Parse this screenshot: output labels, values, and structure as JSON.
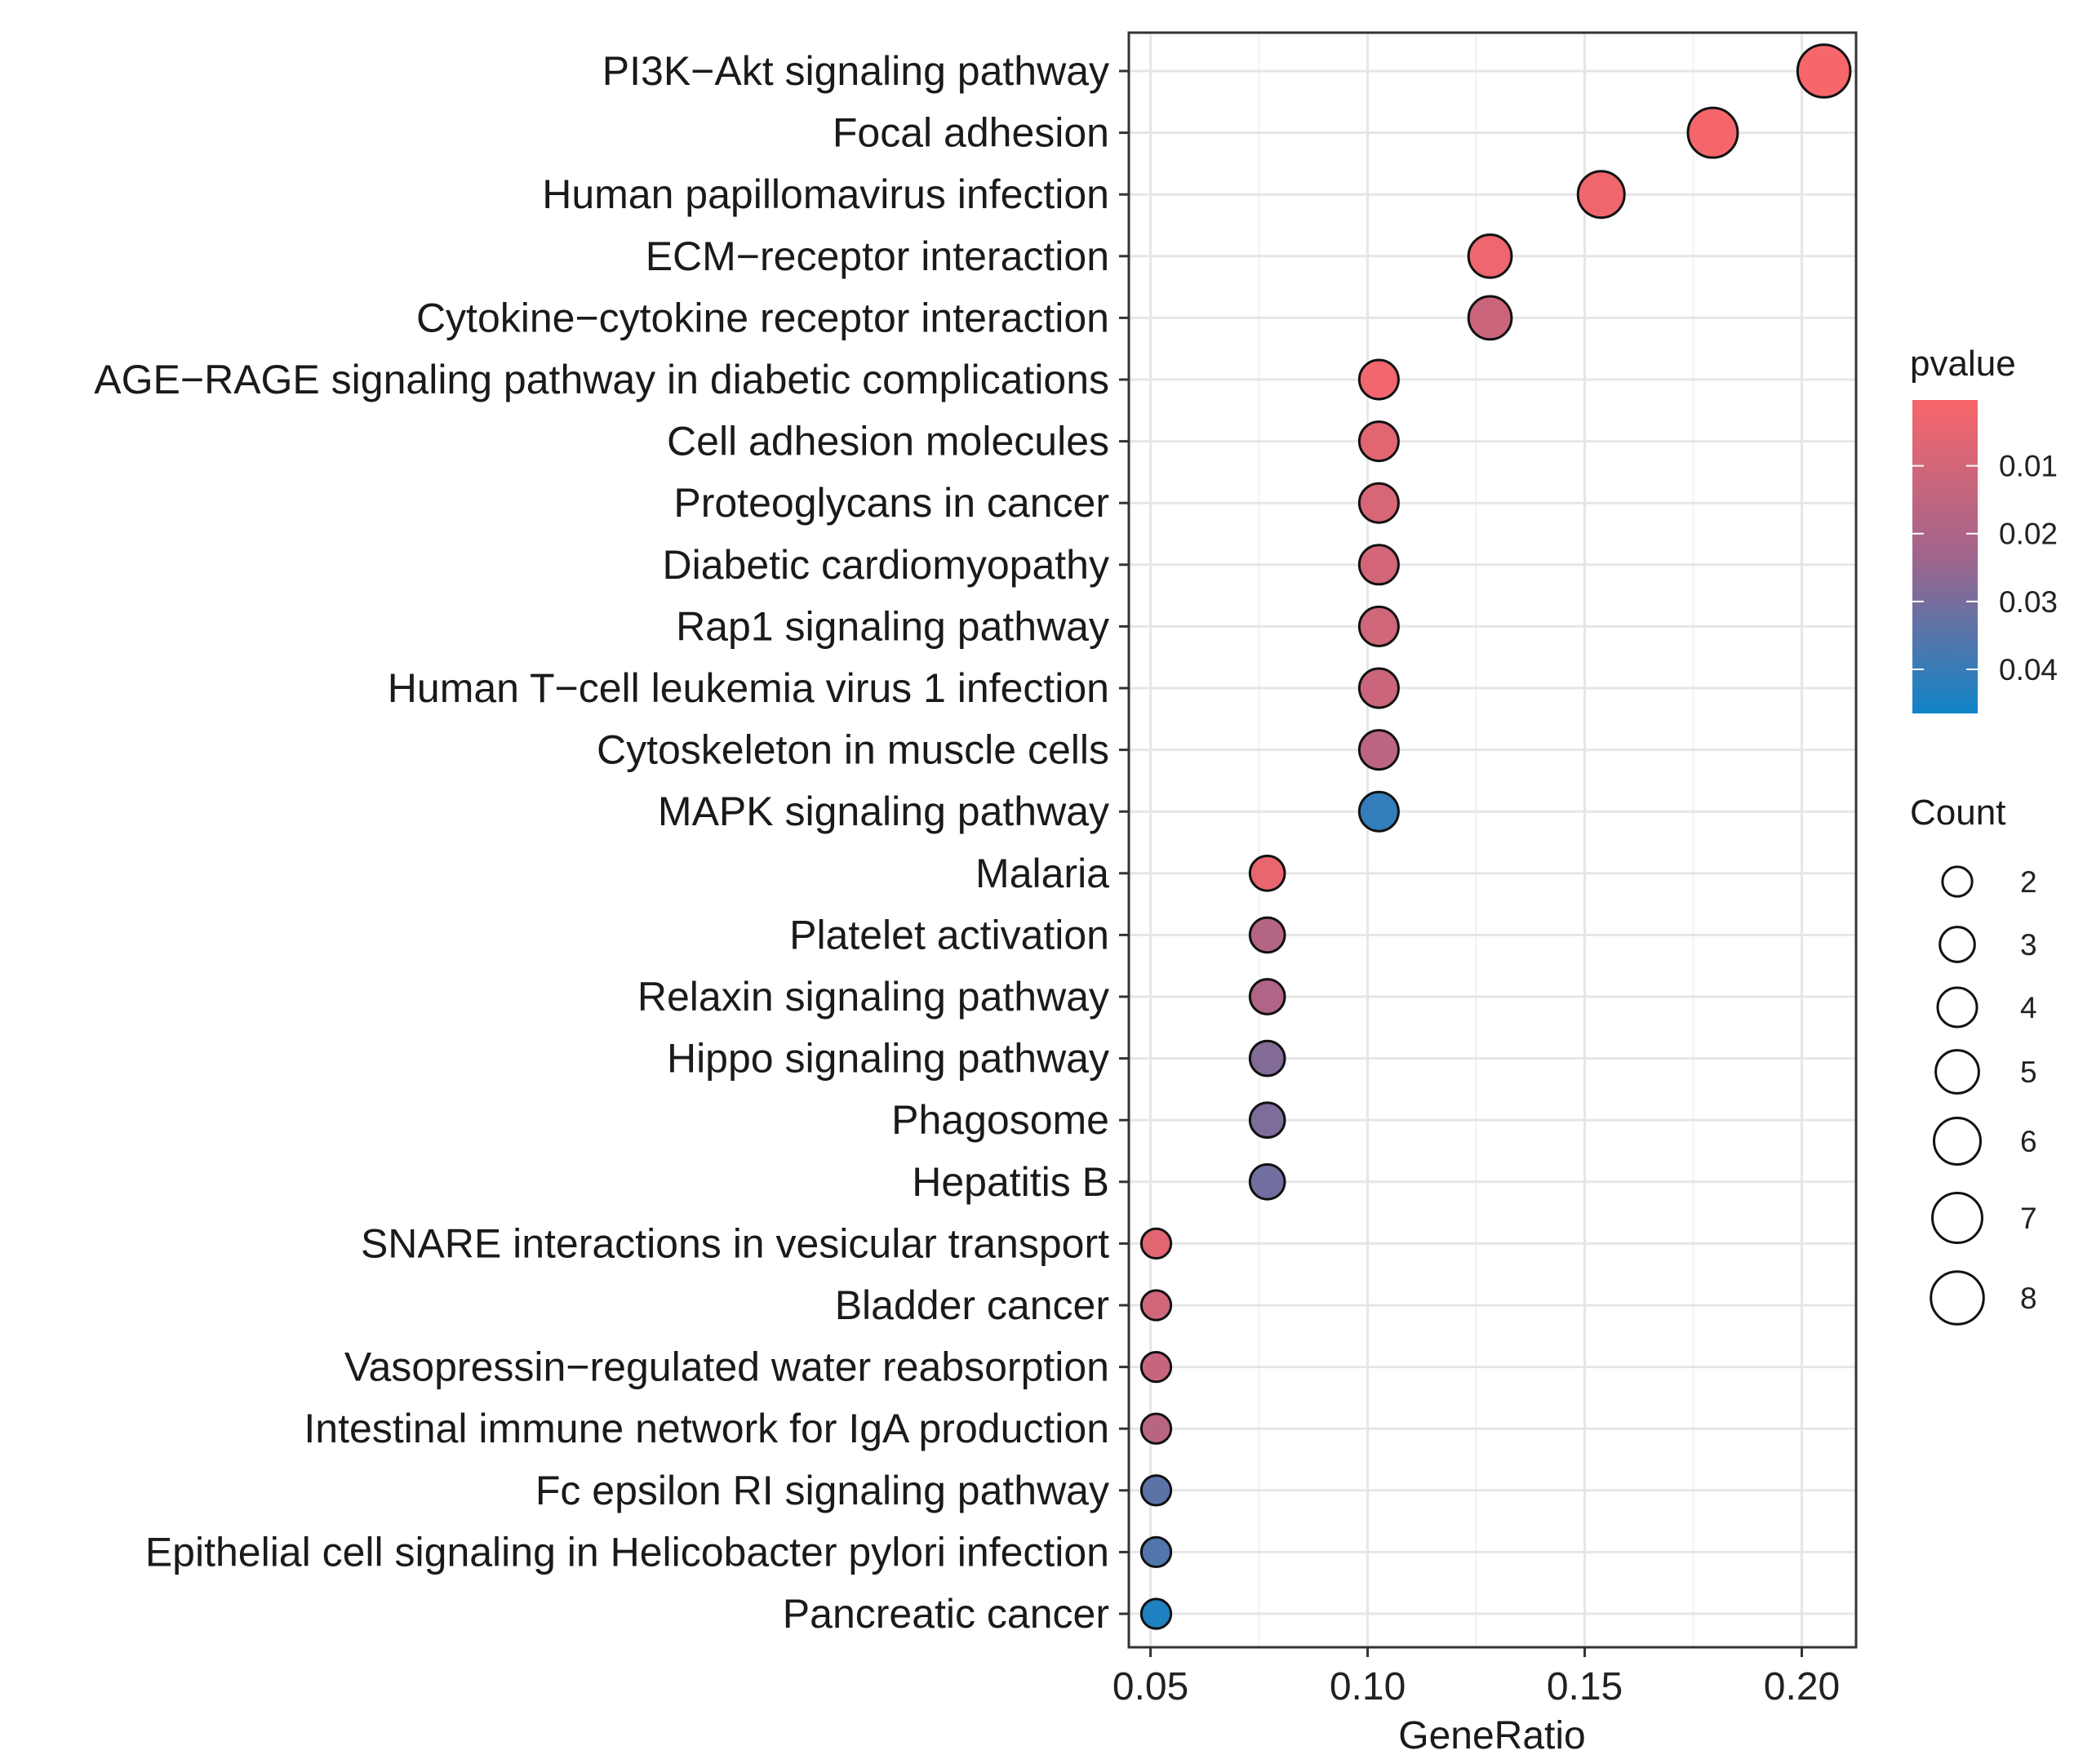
{
  "chart_data": {
    "type": "scatter",
    "xlabel": "GeneRatio",
    "xlim": [
      0.045,
      0.2125
    ],
    "xticks": [
      "0.05",
      "0.10",
      "0.15",
      "0.20"
    ],
    "grid": true,
    "categories": [
      "PI3K−Akt signaling pathway",
      "Focal adhesion",
      "Human papillomavirus infection",
      "ECM−receptor interaction",
      "Cytokine−cytokine receptor interaction",
      "AGE−RAGE signaling pathway in diabetic complications",
      "Cell adhesion molecules",
      "Proteoglycans in cancer",
      "Diabetic cardiomyopathy",
      "Rap1 signaling pathway",
      "Human T−cell leukemia virus 1 infection",
      "Cytoskeleton in muscle cells",
      "MAPK signaling pathway",
      "Malaria",
      "Platelet activation",
      "Relaxin signaling pathway",
      "Hippo signaling pathway",
      "Phagosome",
      "Hepatitis B",
      "SNARE interactions in vesicular transport",
      "Bladder cancer",
      "Vasopressin−regulated water reabsorption",
      "Intestinal immune network for IgA production",
      "Fc epsilon RI signaling pathway",
      "Epithelial cell signaling in Helicobacter pylori infection",
      "Pancreatic cancer"
    ],
    "gene_ratio": [
      0.2051,
      0.1795,
      0.1538,
      0.1282,
      0.1282,
      0.1026,
      0.1026,
      0.1026,
      0.1026,
      0.1026,
      0.1026,
      0.1026,
      0.1026,
      0.0769,
      0.0769,
      0.0769,
      0.0769,
      0.0769,
      0.0769,
      0.0513,
      0.0513,
      0.0513,
      0.0513,
      0.0513,
      0.0513,
      0.0513
    ],
    "count": [
      8,
      7,
      6,
      5,
      5,
      4,
      4,
      4,
      4,
      4,
      4,
      4,
      4,
      3,
      3,
      3,
      3,
      3,
      3,
      2,
      2,
      2,
      2,
      2,
      2,
      2
    ],
    "pvalue": [
      0.0005,
      0.001,
      0.0025,
      0.003,
      0.012,
      0.002,
      0.006,
      0.009,
      0.01,
      0.011,
      0.012,
      0.016,
      0.041,
      0.004,
      0.018,
      0.019,
      0.028,
      0.029,
      0.031,
      0.006,
      0.011,
      0.013,
      0.017,
      0.034,
      0.036,
      0.044
    ],
    "legend_color": {
      "title": "pvalue",
      "ticks": [
        "0.01",
        "0.02",
        "0.03",
        "0.04"
      ],
      "tick_values": [
        0.01,
        0.02,
        0.03,
        0.04
      ],
      "range": [
        0.0003,
        0.0465
      ],
      "low_color": "#F8666A",
      "mid_color": "#A0658C",
      "high_color": "#0F84C8"
    },
    "legend_size": {
      "title": "Count",
      "values": [
        2,
        3,
        4,
        5,
        6,
        7,
        8
      ]
    },
    "legend_placement": "right"
  }
}
